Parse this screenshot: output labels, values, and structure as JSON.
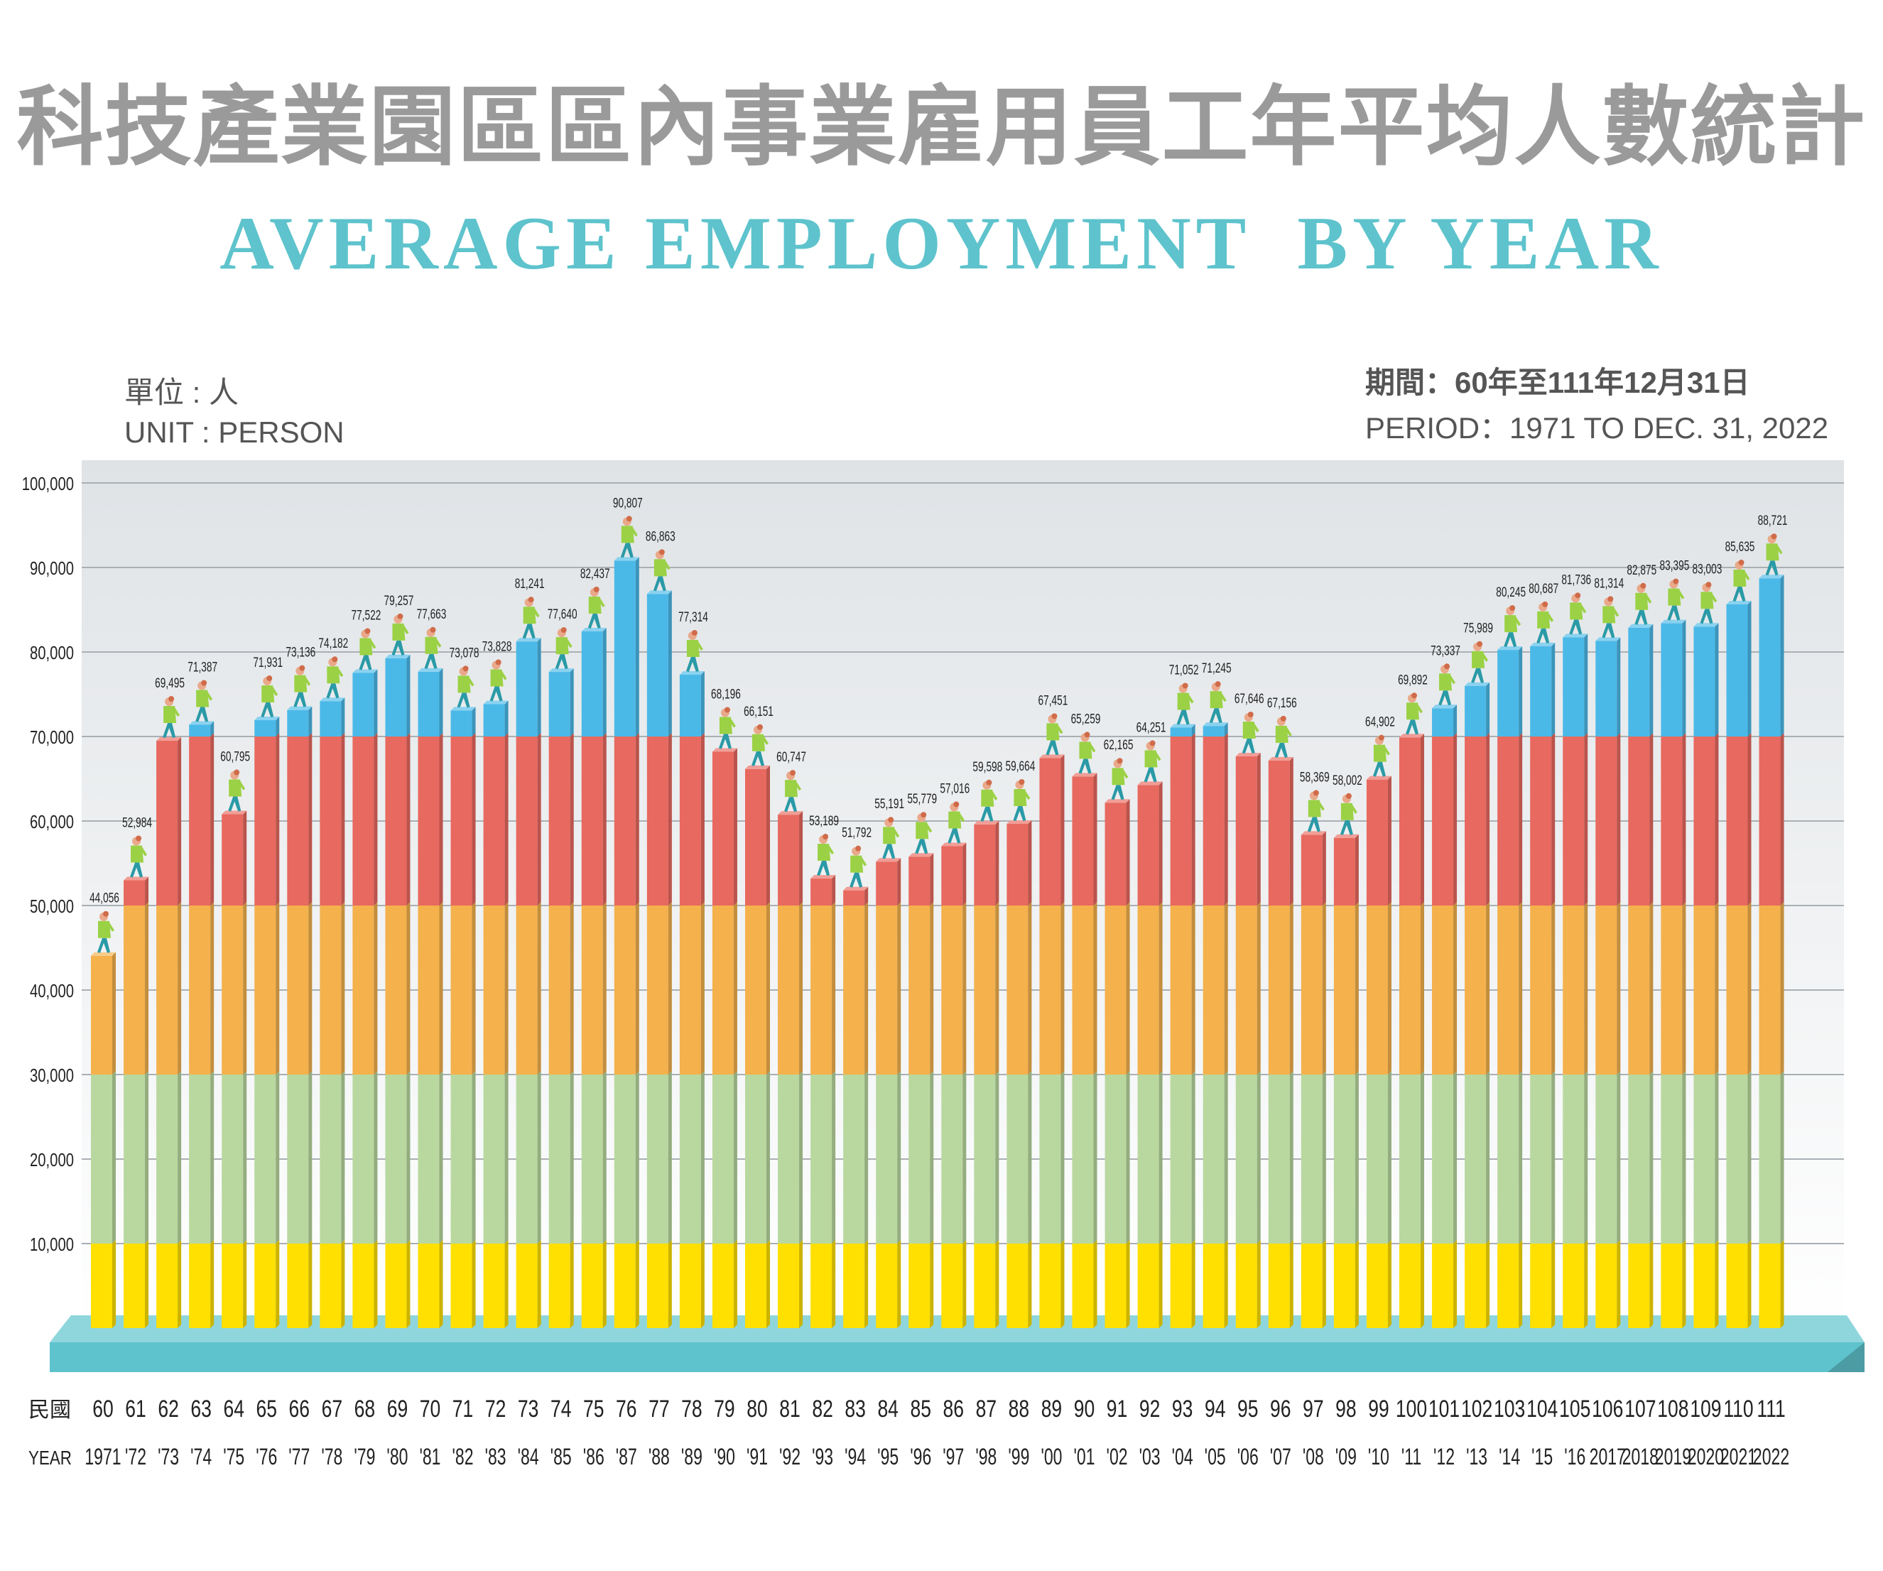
{
  "title_zh": "科技產業園區區內事業雇用員工年平均人數統計",
  "title_en": "AVERAGE EMPLOYMENT  BY YEAR",
  "unit_zh": "單位 : 人",
  "unit_en": "UNIT :  PERSON",
  "period_zh": "期間：60年至111年12月31日",
  "period_en": "PERIOD：1971 TO DEC. 31, 2022",
  "row_label_roc": "民國",
  "row_label_year": "YEAR",
  "colors": {
    "plot_bg_top": "#dfe3e6",
    "yellow": "#ffe000",
    "green": "#b9d89f",
    "orange": "#f4b14c",
    "red": "#e8695f",
    "blue": "#4bb9e8",
    "base": "#5ec3cc",
    "figure_shirt": "#9bd145",
    "figure_pants": "#2a9aa6"
  },
  "chart_data": {
    "type": "bar",
    "ylim": [
      0,
      100000
    ],
    "yticks": [
      "10,000",
      "20,000",
      "30,000",
      "40,000",
      "50,000",
      "60,000",
      "70,000",
      "80,000",
      "90,000",
      "100,000"
    ],
    "grid": true,
    "band_boundaries": [
      10000,
      30000,
      50000,
      70000
    ],
    "roc_years": [
      "60",
      "61",
      "62",
      "63",
      "64",
      "65",
      "66",
      "67",
      "68",
      "69",
      "70",
      "71",
      "72",
      "73",
      "74",
      "75",
      "76",
      "77",
      "78",
      "79",
      "80",
      "81",
      "82",
      "83",
      "84",
      "85",
      "86",
      "87",
      "88",
      "89",
      "90",
      "91",
      "92",
      "93",
      "94",
      "95",
      "96",
      "97",
      "98",
      "99",
      "100",
      "101",
      "102",
      "103",
      "104",
      "105",
      "106",
      "107",
      "108",
      "109",
      "110",
      "111"
    ],
    "years": [
      "1971",
      "'72",
      "'73",
      "'74",
      "'75",
      "'76",
      "'77",
      "'78",
      "'79",
      "'80",
      "'81",
      "'82",
      "'83",
      "'84",
      "'85",
      "'86",
      "'87",
      "'88",
      "'89",
      "'90",
      "'91",
      "'92",
      "'93",
      "'94",
      "'95",
      "'96",
      "'97",
      "'98",
      "'99",
      "'00",
      "'01",
      "'02",
      "'03",
      "'04",
      "'05",
      "'06",
      "'07",
      "'08",
      "'09",
      "'10",
      "'11",
      "'12",
      "'13",
      "'14",
      "'15",
      "'16",
      "2017",
      "2018",
      "2019",
      "2020",
      "2021",
      "2022"
    ],
    "values": [
      44056,
      52984,
      69495,
      71387,
      60795,
      71931,
      73136,
      74182,
      77522,
      79257,
      77663,
      73078,
      73828,
      81241,
      77640,
      82437,
      90807,
      86863,
      77314,
      68196,
      66151,
      60747,
      53189,
      51792,
      55191,
      55779,
      57016,
      59598,
      59664,
      67451,
      65259,
      62165,
      64251,
      71052,
      71245,
      67646,
      67156,
      58369,
      58002,
      64902,
      69892,
      73337,
      75989,
      80245,
      80687,
      81736,
      81314,
      82875,
      83395,
      83003,
      85635,
      88721
    ],
    "value_labels": [
      "44,056",
      "52,984",
      "69,495",
      "71,387",
      "60,795",
      "71,931",
      "73,136",
      "74,182",
      "77,522",
      "79,257",
      "77,663",
      "73,078",
      "73,828",
      "81,241",
      "77,640",
      "82,437",
      "90,807",
      "86,863",
      "77,314",
      "68,196",
      "66,151",
      "60,747",
      "53,189",
      "51,792",
      "55,191",
      "55,779",
      "57,016",
      "59,598",
      "59,664",
      "67,451",
      "65,259",
      "62,165",
      "64,251",
      "71,052",
      "71,245",
      "67,646",
      "67,156",
      "58,369",
      "58,002",
      "64,902",
      "69,892",
      "73,337",
      "75,989",
      "80,245",
      "80,687",
      "81,736",
      "81,314",
      "82,875",
      "83,395",
      "83,003",
      "85,635",
      "88,721"
    ]
  }
}
